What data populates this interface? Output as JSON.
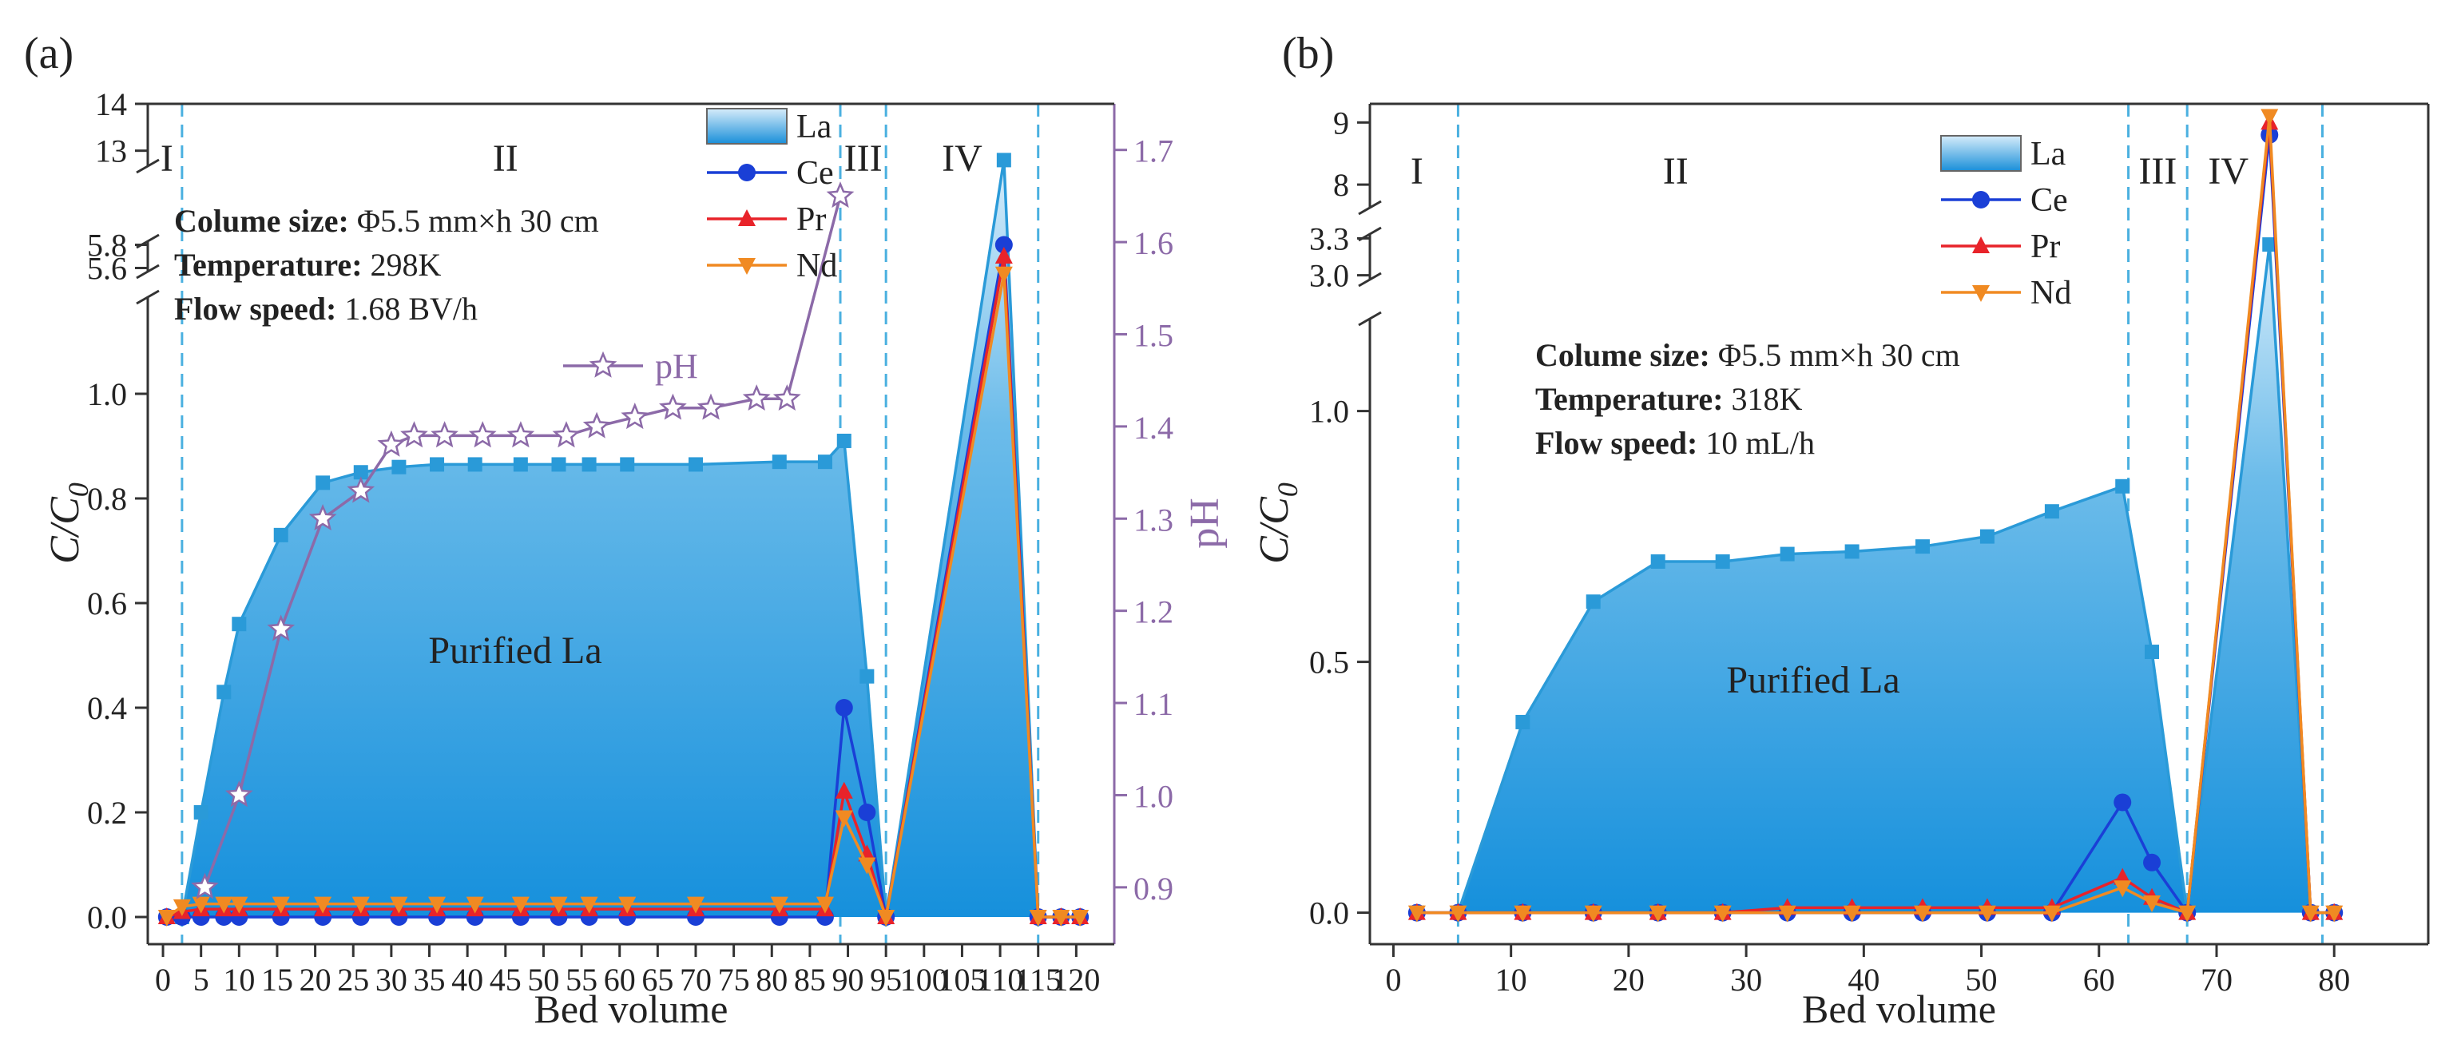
{
  "colors": {
    "la": "#2a9ad8",
    "ce": "#1a3fd6",
    "pr": "#e8232a",
    "nd": "#f08a22",
    "ph": "#8c6aa8",
    "divider": "#4ab0e0",
    "axis": "#333333"
  },
  "chart_data": [
    {
      "type": "line",
      "panel_label": "(a)",
      "xlabel": "Bed volume",
      "ylabel_main": "C/C",
      "ylabel_sub": "0",
      "y2label": "pH",
      "xlim": [
        -2,
        125
      ],
      "xticks": [
        0,
        5,
        10,
        15,
        20,
        25,
        30,
        35,
        40,
        45,
        50,
        55,
        60,
        65,
        70,
        75,
        80,
        85,
        90,
        95,
        100,
        105,
        110,
        115,
        120
      ],
      "y_segments": [
        {
          "range": [
            0,
            1.2
          ],
          "ticks": [
            0.0,
            0.2,
            0.4,
            0.6,
            0.8,
            1.0
          ],
          "tick_labels": [
            "0.0",
            "0.2",
            "0.4",
            "0.6",
            "0.8",
            "1.0"
          ]
        },
        {
          "range": [
            5.5,
            5.9
          ],
          "ticks": [
            5.6,
            5.8
          ],
          "tick_labels": [
            "5.6",
            "5.8"
          ]
        },
        {
          "range": [
            12.5,
            14
          ],
          "ticks": [
            13,
            14
          ],
          "tick_labels": [
            "13",
            "14"
          ]
        }
      ],
      "y2lim": [
        0.86,
        1.75
      ],
      "y2ticks": [
        0.9,
        1.0,
        1.1,
        1.2,
        1.3,
        1.4,
        1.5,
        1.6,
        1.7
      ],
      "y2tick_labels": [
        "0.9",
        "1.0",
        "1.1",
        "1.2",
        "1.3",
        "1.4",
        "1.5",
        "1.6",
        "1.7"
      ],
      "stage_dividers_x": [
        2.5,
        89,
        95,
        115
      ],
      "stage_labels": [
        {
          "text": "I",
          "x": 0.5
        },
        {
          "text": "II",
          "x": 45
        },
        {
          "text": "III",
          "x": 92
        },
        {
          "text": "IV",
          "x": 105
        }
      ],
      "annotations": [
        {
          "bold": "Colume size:",
          "text": " Φ5.5 mm×h 30 cm"
        },
        {
          "bold": "Temperature:",
          "text": "  298K"
        },
        {
          "bold": "Flow speed:",
          "text": " 1.68 BV/h"
        }
      ],
      "fill_label": "Purified La",
      "legend": [
        "La",
        "Ce",
        "Pr",
        "Nd"
      ],
      "ph_legend": "pH",
      "series": [
        {
          "name": "La",
          "x": [
            0.5,
            2.5,
            5,
            8,
            10,
            15.5,
            21,
            26,
            31,
            36,
            41,
            47,
            52,
            56,
            61,
            70,
            81,
            87,
            89.5,
            92.5,
            95,
            110.5,
            115,
            118,
            120.5
          ],
          "y": [
            0,
            0,
            0.2,
            0.43,
            0.56,
            0.73,
            0.83,
            0.85,
            0.86,
            0.865,
            0.865,
            0.865,
            0.865,
            0.865,
            0.865,
            0.865,
            0.87,
            0.87,
            0.91,
            0.46,
            0,
            12.8,
            0,
            0,
            0
          ]
        },
        {
          "name": "Ce",
          "x": [
            0.5,
            2.5,
            5,
            8,
            10,
            15.5,
            21,
            26,
            31,
            36,
            41,
            47,
            52,
            56,
            61,
            70,
            81,
            87,
            89.5,
            92.5,
            95,
            110.5,
            115,
            118,
            120.5
          ],
          "y": [
            0,
            0,
            0,
            0,
            0,
            0,
            0,
            0,
            0,
            0,
            0,
            0,
            0,
            0,
            0,
            0,
            0,
            0,
            0.4,
            0.2,
            0,
            5.8,
            0,
            0,
            0
          ]
        },
        {
          "name": "Pr",
          "x": [
            0.5,
            2.5,
            5,
            8,
            10,
            15.5,
            21,
            26,
            31,
            36,
            41,
            47,
            52,
            56,
            61,
            70,
            81,
            87,
            89.5,
            92.5,
            95,
            110.5,
            115,
            118,
            120.5
          ],
          "y": [
            0,
            0.01,
            0.015,
            0.015,
            0.015,
            0.015,
            0.015,
            0.015,
            0.015,
            0.015,
            0.015,
            0.015,
            0.015,
            0.015,
            0.015,
            0.015,
            0.015,
            0.015,
            0.24,
            0.12,
            0,
            5.7,
            0,
            0,
            0
          ]
        },
        {
          "name": "Nd",
          "x": [
            0.5,
            2.5,
            5,
            8,
            10,
            15.5,
            21,
            26,
            31,
            36,
            41,
            47,
            52,
            56,
            61,
            70,
            81,
            87,
            89.5,
            92.5,
            95,
            110.5,
            115,
            118,
            120.5
          ],
          "y": [
            0,
            0.02,
            0.025,
            0.025,
            0.025,
            0.025,
            0.025,
            0.025,
            0.025,
            0.025,
            0.025,
            0.025,
            0.025,
            0.025,
            0.025,
            0.025,
            0.025,
            0.025,
            0.19,
            0.1,
            0,
            5.55,
            0,
            0,
            0
          ]
        },
        {
          "name": "pH",
          "axis": "right",
          "x": [
            5.5,
            10,
            15.5,
            21,
            26,
            30,
            33,
            37,
            42,
            47,
            53,
            57,
            62,
            67,
            72,
            78,
            82,
            89
          ],
          "y": [
            0.9,
            1.0,
            1.18,
            1.3,
            1.33,
            1.38,
            1.39,
            1.39,
            1.39,
            1.39,
            1.39,
            1.4,
            1.41,
            1.42,
            1.42,
            1.43,
            1.43,
            1.65
          ]
        }
      ]
    },
    {
      "type": "line",
      "panel_label": "(b)",
      "xlabel": "Bed volume",
      "ylabel_main": "C/C",
      "ylabel_sub": "0",
      "xlim": [
        -2,
        88
      ],
      "xticks": [
        0,
        10,
        20,
        30,
        40,
        50,
        60,
        70,
        80
      ],
      "y_segments": [
        {
          "range": [
            -0.05,
            1.2
          ],
          "ticks": [
            0.0,
            0.5,
            1.0
          ],
          "tick_labels": [
            "0.0",
            "0.5",
            "1.0"
          ]
        },
        {
          "range": [
            2.9,
            3.4
          ],
          "ticks": [
            3.0,
            3.3
          ],
          "tick_labels": [
            "3.0",
            "3.3"
          ]
        },
        {
          "range": [
            7.5,
            9.3
          ],
          "ticks": [
            8,
            9
          ],
          "tick_labels": [
            "8",
            "9"
          ]
        }
      ],
      "stage_dividers_x": [
        5.5,
        62.5,
        67.5,
        79
      ],
      "stage_labels": [
        {
          "text": "I",
          "x": 2
        },
        {
          "text": "II",
          "x": 24
        },
        {
          "text": "III",
          "x": 65
        },
        {
          "text": "IV",
          "x": 71
        }
      ],
      "annotations": [
        {
          "bold": "Colume size:",
          "text": " Φ5.5 mm×h 30 cm"
        },
        {
          "bold": "Temperature:",
          "text": "  318K"
        },
        {
          "bold": "Flow speed:",
          "text": " 10 mL/h"
        }
      ],
      "fill_label": "Purified La",
      "legend": [
        "La",
        "Ce",
        "Pr",
        "Nd"
      ],
      "series": [
        {
          "name": "La",
          "x": [
            2,
            5.5,
            11,
            17,
            22.5,
            28,
            33.5,
            39,
            45,
            50.5,
            56,
            62,
            64.5,
            67.5,
            74.5,
            78,
            80
          ],
          "y": [
            0,
            0,
            0.38,
            0.62,
            0.7,
            0.7,
            0.715,
            0.72,
            0.73,
            0.75,
            0.8,
            0.85,
            0.52,
            0,
            3.25,
            0,
            0
          ]
        },
        {
          "name": "Ce",
          "x": [
            2,
            5.5,
            11,
            17,
            22.5,
            28,
            33.5,
            39,
            45,
            50.5,
            56,
            62,
            64.5,
            67.5,
            74.5,
            78,
            80
          ],
          "y": [
            0,
            0,
            0,
            0,
            0,
            0,
            0,
            0,
            0,
            0,
            0,
            0.22,
            0.1,
            0,
            8.8,
            0,
            0
          ]
        },
        {
          "name": "Pr",
          "x": [
            2,
            5.5,
            11,
            17,
            22.5,
            28,
            33.5,
            39,
            45,
            50.5,
            56,
            62,
            64.5,
            67.5,
            74.5,
            78,
            80
          ],
          "y": [
            0,
            0,
            0,
            0,
            0,
            0,
            0.01,
            0.01,
            0.01,
            0.01,
            0.01,
            0.07,
            0.03,
            0,
            9.0,
            0,
            0
          ]
        },
        {
          "name": "Nd",
          "x": [
            2,
            5.5,
            11,
            17,
            22.5,
            28,
            33.5,
            39,
            45,
            50.5,
            56,
            62,
            64.5,
            67.5,
            74.5,
            78,
            80
          ],
          "y": [
            0,
            0,
            0,
            0,
            0,
            0,
            0,
            0,
            0,
            0,
            0,
            0.05,
            0.02,
            0,
            9.1,
            0,
            0
          ]
        }
      ]
    }
  ]
}
